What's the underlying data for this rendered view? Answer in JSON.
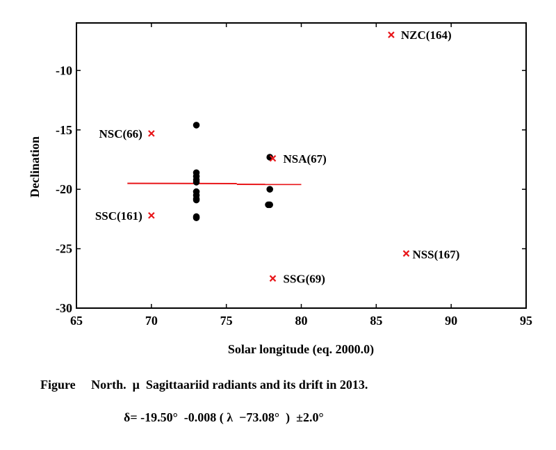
{
  "chart_data": {
    "type": "scatter",
    "xlabel": "Solar longitude (eq. 2000.0)",
    "ylabel": "Declination",
    "xlim": [
      65,
      95
    ],
    "ylim": [
      -30,
      -6
    ],
    "xticks": [
      65,
      70,
      75,
      80,
      85,
      90,
      95
    ],
    "yticks": [
      -10,
      -15,
      -20,
      -25,
      -30
    ],
    "grid": false,
    "points": [
      {
        "x": 73.0,
        "y": -14.6
      },
      {
        "x": 73.0,
        "y": -18.6
      },
      {
        "x": 73.0,
        "y": -18.9
      },
      {
        "x": 73.0,
        "y": -19.2
      },
      {
        "x": 73.0,
        "y": -19.4
      },
      {
        "x": 73.0,
        "y": -20.2
      },
      {
        "x": 73.0,
        "y": -20.5
      },
      {
        "x": 73.0,
        "y": -20.8
      },
      {
        "x": 73.0,
        "y": -20.9
      },
      {
        "x": 73.0,
        "y": -22.3
      },
      {
        "x": 73.0,
        "y": -22.4
      },
      {
        "x": 77.9,
        "y": -17.3
      },
      {
        "x": 77.9,
        "y": -20.0
      },
      {
        "x": 77.8,
        "y": -21.3
      },
      {
        "x": 77.9,
        "y": -21.3
      }
    ],
    "fit_line": {
      "segments": [
        {
          "x": [
            68.4,
            75.7
          ],
          "y": [
            -19.5,
            -19.52
          ]
        },
        {
          "x": [
            75.7,
            80.0
          ],
          "y": [
            -19.58,
            -19.59
          ]
        }
      ],
      "color": "#e8161a"
    },
    "reference_radiants": [
      {
        "name": "NZC(164)",
        "x": 86.0,
        "y": -7.0
      },
      {
        "name": "NSC(66)",
        "x": 70.0,
        "y": -15.3
      },
      {
        "name": "NSA(67)",
        "x": 78.1,
        "y": -17.4
      },
      {
        "name": "SSC(161)",
        "x": 70.0,
        "y": -22.2
      },
      {
        "name": "NSS(167)",
        "x": 87.0,
        "y": -25.4
      },
      {
        "name": "SSG(69)",
        "x": 78.1,
        "y": -27.5
      }
    ],
    "colors": {
      "points": "#000000",
      "radiants": "#e8161a",
      "fit_line": "#e8161a"
    }
  },
  "caption": {
    "line1": "Figure     North.  μ  Sagittaariid radiants and its drift in 2013.",
    "line2": "δ= -19.50°  -0.008 ( λ  −73.08°  )  ±2.0°"
  }
}
